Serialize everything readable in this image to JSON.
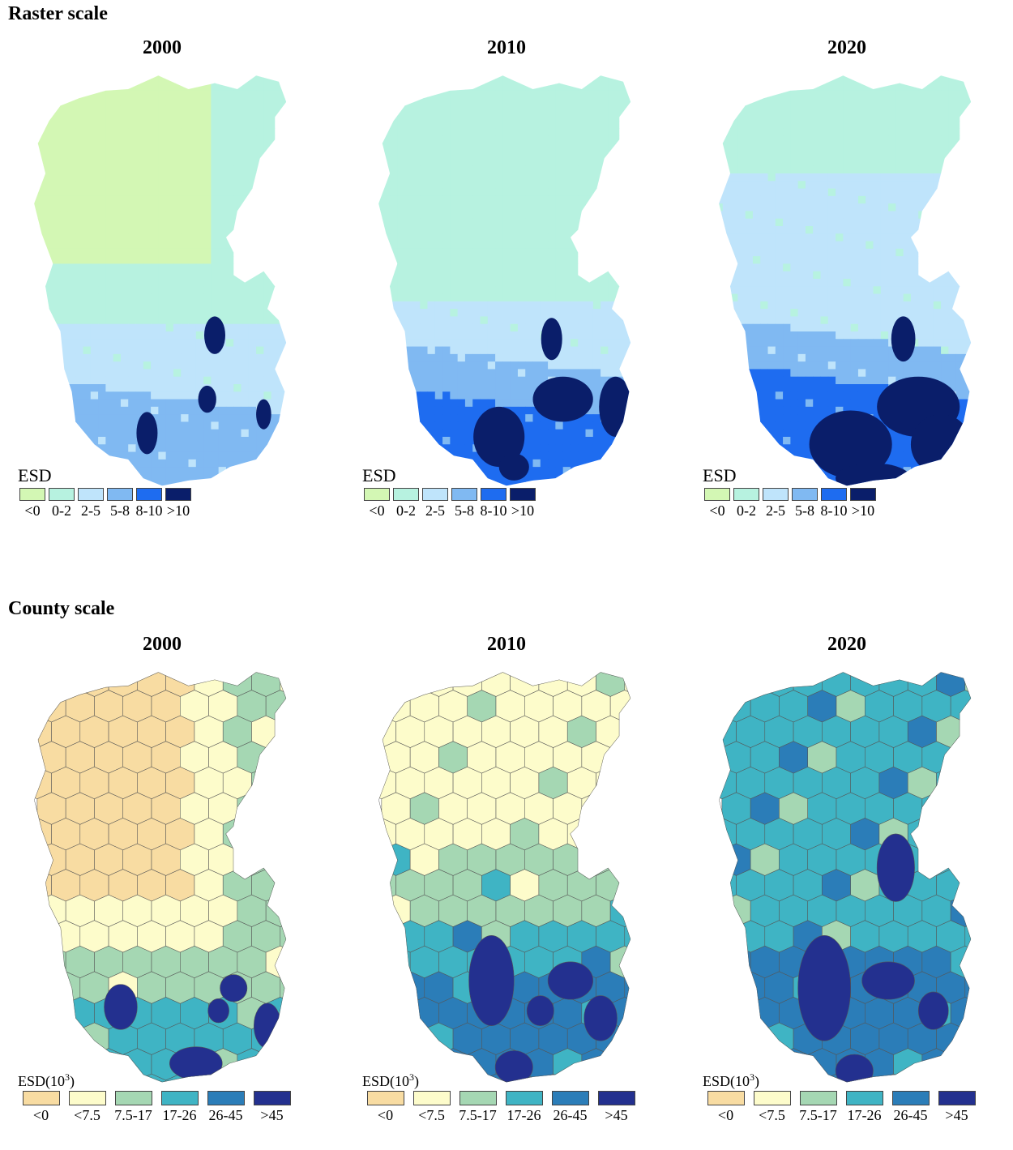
{
  "sections": [
    {
      "title": "Raster scale",
      "years": [
        "2000",
        "2010",
        "2020"
      ],
      "legend": {
        "title": "ESD",
        "classes": [
          {
            "label": "<0",
            "color": "#d3f7b4"
          },
          {
            "label": "0-2",
            "color": "#b7f2e0"
          },
          {
            "label": "2-5",
            "color": "#bfe4fb"
          },
          {
            "label": "5-8",
            "color": "#80b9f2"
          },
          {
            "label": "8-10",
            "color": "#1e6cf0"
          },
          {
            "label": ">10",
            "color": "#0a1e6a"
          }
        ]
      }
    },
    {
      "title": "County scale",
      "years": [
        "2000",
        "2010",
        "2020"
      ],
      "legend": {
        "title": "ESD(10",
        "title_sup": "3",
        "title_suffix": ")",
        "classes": [
          {
            "label": "<0",
            "color": "#f8dca2"
          },
          {
            "label": "<7.5",
            "color": "#fdfccb"
          },
          {
            "label": "7.5-17",
            "color": "#a5d7b3"
          },
          {
            "label": "17-26",
            "color": "#3fb4c4"
          },
          {
            "label": "26-45",
            "color": "#2b7db8"
          },
          {
            "label": ">45",
            "color": "#23308f"
          }
        ]
      }
    }
  ]
}
